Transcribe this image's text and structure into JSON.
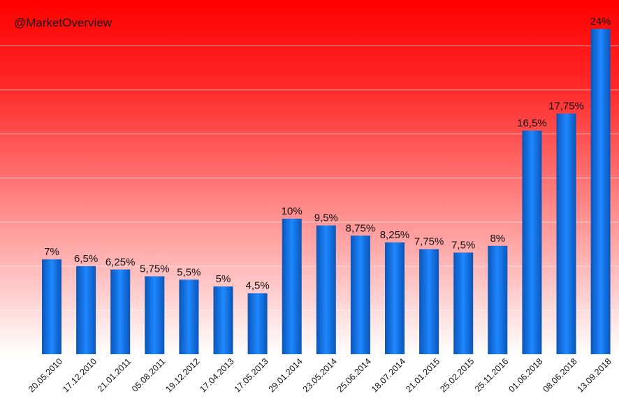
{
  "watermark": "@MarketOverview",
  "colors": {
    "background_top": "#ff0000",
    "background_bottom": "#ffffff",
    "bar_light": "#1e88ff",
    "bar_dark": "#0b55b8",
    "gridline": "#ffffff"
  },
  "chart_data": {
    "type": "bar",
    "title": "",
    "xlabel": "",
    "ylabel": "",
    "ylim": [
      0,
      24
    ],
    "grid": true,
    "legend": "none",
    "categories": [
      "20.05.2010",
      "17.12.2010",
      "21.01.2011",
      "05.08.2011",
      "19.12.2012",
      "17.04.2013",
      "17.05.2013",
      "29.01.2014",
      "23.05.2014",
      "25.06.2014",
      "18.07.2014",
      "21.01.2015",
      "25.02.2015",
      "25.11.2016",
      "01.06.2018",
      "08.06.2018",
      "13.09.2018"
    ],
    "values": [
      7,
      6.5,
      6.25,
      5.75,
      5.5,
      5,
      4.5,
      10,
      9.5,
      8.75,
      8.25,
      7.75,
      7.5,
      8,
      16.5,
      17.75,
      24
    ],
    "data_labels": [
      "7%",
      "6,5%",
      "6,25%",
      "5,75%",
      "5,5%",
      "5%",
      "4,5%",
      "10%",
      "9,5%",
      "8,75%",
      "8,25%",
      "7,75%",
      "7,5%",
      "8%",
      "16,5%",
      "17,75%",
      "24%"
    ]
  }
}
